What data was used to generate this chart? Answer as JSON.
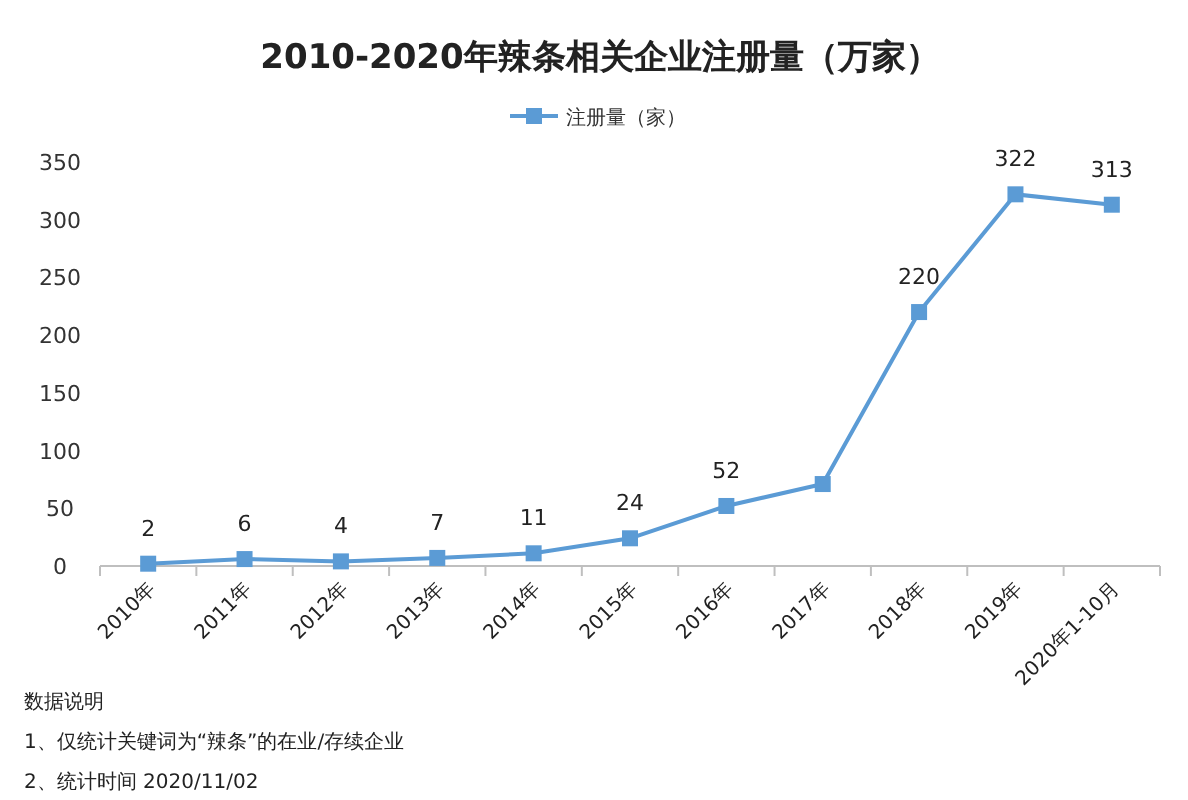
{
  "chart_data": {
    "type": "line",
    "title": "2010-2020年辣条相关企业注册量（万家）",
    "categories": [
      "2010年",
      "2011年",
      "2012年",
      "2013年",
      "2014年",
      "2015年",
      "2016年",
      "2017年",
      "2018年",
      "2019年",
      "2020年1-10月"
    ],
    "series": [
      {
        "name": "注册量（家）",
        "color": "#5b9bd5",
        "values": [
          2,
          6,
          4,
          7,
          11,
          24,
          52,
          71,
          220,
          322,
          313
        ],
        "value_labels": [
          "2",
          "6",
          "4",
          "7",
          "11",
          "24",
          "52",
          null,
          "220",
          "322",
          "313"
        ]
      }
    ],
    "ylim": [
      0,
      350
    ],
    "yticks": [
      0,
      50,
      100,
      150,
      200,
      250,
      300,
      350
    ],
    "legend": "top",
    "marker": "square",
    "line_style": "solid",
    "annotations": [
      "数据说明",
      "1、仅统计关键词为“辣条”的在业/存续企业",
      "2、统计时间 2020/11/02"
    ]
  }
}
